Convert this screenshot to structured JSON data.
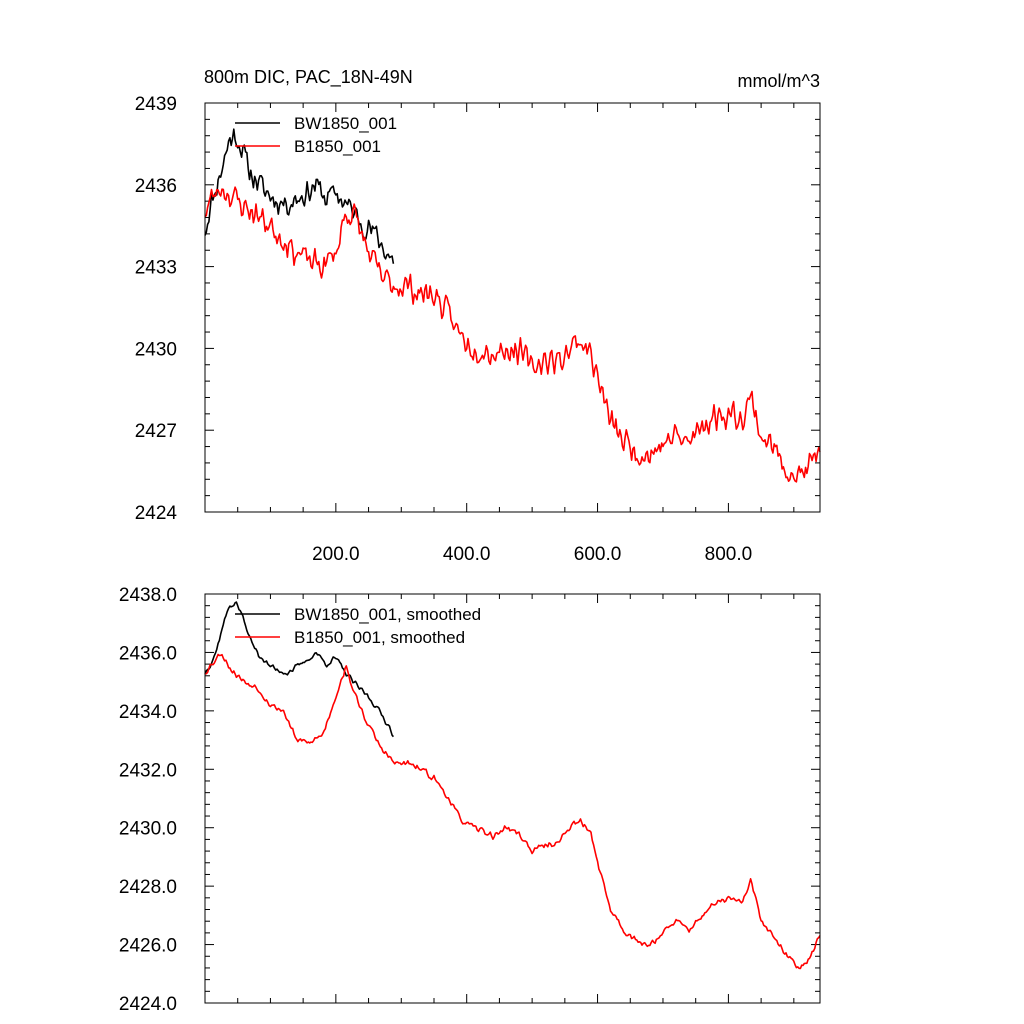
{
  "chart_data": [
    {
      "type": "line",
      "title": "800m DIC, PAC_18N-49N",
      "units": "mmol/m^3",
      "xlim": [
        0,
        940
      ],
      "ylim": [
        2424,
        2439
      ],
      "yticks": [
        2424,
        2427,
        2430,
        2433,
        2436,
        2439
      ],
      "ytick_labels": [
        "2424",
        "2427",
        "2430",
        "2433",
        "2436",
        "2439"
      ],
      "xticks": [
        200,
        400,
        600,
        800
      ],
      "xtick_labels": [
        "200.0",
        "400.0",
        "600.0",
        "800.0"
      ],
      "legend_position": "top-left",
      "series": [
        {
          "name": "BW1850_001",
          "color": "#000000",
          "noise": 0.55,
          "seed": 11,
          "x": [
            0,
            8,
            18,
            28,
            38,
            48,
            58,
            68,
            80,
            95,
            110,
            125,
            140,
            155,
            170,
            185,
            200,
            215,
            230,
            245,
            260,
            275,
            288
          ],
          "y": [
            2434.3,
            2435.2,
            2436.0,
            2436.8,
            2437.7,
            2437.8,
            2437.2,
            2436.5,
            2436.1,
            2435.7,
            2435.4,
            2435.3,
            2435.5,
            2435.7,
            2436.0,
            2435.5,
            2435.7,
            2435.3,
            2434.9,
            2434.5,
            2434.2,
            2433.6,
            2433.2
          ]
        },
        {
          "name": "B1850_001",
          "color": "#ff0000",
          "noise": 0.6,
          "seed": 23,
          "x": [
            0,
            10,
            25,
            40,
            60,
            80,
            100,
            120,
            140,
            160,
            180,
            200,
            215,
            230,
            250,
            270,
            290,
            310,
            330,
            350,
            370,
            390,
            410,
            425,
            440,
            460,
            480,
            500,
            520,
            540,
            560,
            575,
            590,
            605,
            620,
            640,
            660,
            680,
            700,
            720,
            740,
            760,
            780,
            800,
            820,
            835,
            850,
            870,
            890,
            910,
            925,
            940
          ],
          "y": [
            2435.0,
            2435.5,
            2435.9,
            2435.6,
            2435.2,
            2434.9,
            2434.5,
            2434.0,
            2433.5,
            2433.2,
            2433.0,
            2433.5,
            2435.0,
            2434.8,
            2433.5,
            2432.6,
            2432.3,
            2432.3,
            2432.0,
            2432.0,
            2431.3,
            2430.5,
            2430.0,
            2430.0,
            2429.8,
            2430.0,
            2429.9,
            2429.3,
            2429.6,
            2429.5,
            2430.1,
            2430.3,
            2429.8,
            2428.5,
            2427.3,
            2426.6,
            2426.2,
            2426.1,
            2426.5,
            2426.8,
            2426.5,
            2427.2,
            2427.5,
            2427.6,
            2427.5,
            2428.2,
            2426.8,
            2426.3,
            2425.6,
            2425.3,
            2425.7,
            2426.3
          ]
        }
      ]
    },
    {
      "type": "line",
      "title": "",
      "xlim": [
        0,
        940
      ],
      "ylim": [
        2424.0,
        2438.0
      ],
      "yticks": [
        2424,
        2426,
        2428,
        2430,
        2432,
        2434,
        2436,
        2438
      ],
      "ytick_labels": [
        "2424.0",
        "2426.0",
        "2428.0",
        "2430.0",
        "2432.0",
        "2434.0",
        "2436.0",
        "2438.0"
      ],
      "xticks": [
        200,
        400,
        600,
        800
      ],
      "xtick_labels": [],
      "legend_position": "top-left",
      "series": [
        {
          "name": "BW1850_001, smoothed",
          "color": "#000000",
          "noise": 0.12,
          "seed": 37,
          "x": [
            0,
            8,
            18,
            28,
            38,
            48,
            58,
            68,
            80,
            95,
            110,
            125,
            140,
            155,
            170,
            185,
            200,
            215,
            230,
            245,
            260,
            275,
            288
          ],
          "y": [
            2435.3,
            2435.6,
            2436.1,
            2437.0,
            2437.6,
            2437.7,
            2437.2,
            2436.5,
            2436.0,
            2435.6,
            2435.4,
            2435.3,
            2435.5,
            2435.7,
            2436.0,
            2435.6,
            2435.8,
            2435.3,
            2434.9,
            2434.6,
            2434.2,
            2433.7,
            2433.2
          ]
        },
        {
          "name": "B1850_001, smoothed",
          "color": "#ff0000",
          "noise": 0.13,
          "seed": 53,
          "x": [
            0,
            10,
            25,
            40,
            60,
            80,
            100,
            120,
            140,
            160,
            180,
            200,
            215,
            230,
            250,
            270,
            290,
            310,
            330,
            350,
            370,
            390,
            410,
            425,
            440,
            460,
            480,
            500,
            520,
            540,
            560,
            575,
            590,
            605,
            620,
            640,
            660,
            680,
            700,
            720,
            740,
            760,
            780,
            800,
            820,
            835,
            850,
            870,
            890,
            910,
            925,
            940
          ],
          "y": [
            2435.3,
            2435.6,
            2436.0,
            2435.4,
            2435.0,
            2434.8,
            2434.2,
            2434.0,
            2433.0,
            2432.9,
            2433.2,
            2434.5,
            2435.5,
            2434.5,
            2433.5,
            2432.7,
            2432.2,
            2432.2,
            2432.0,
            2431.7,
            2431.1,
            2430.3,
            2430.0,
            2429.9,
            2429.7,
            2430.0,
            2429.8,
            2429.2,
            2429.4,
            2429.5,
            2430.1,
            2430.2,
            2429.8,
            2428.4,
            2427.2,
            2426.5,
            2426.1,
            2426.0,
            2426.4,
            2426.8,
            2426.5,
            2427.0,
            2427.4,
            2427.6,
            2427.4,
            2428.2,
            2426.8,
            2426.2,
            2425.6,
            2425.2,
            2425.6,
            2426.3
          ]
        }
      ]
    }
  ]
}
